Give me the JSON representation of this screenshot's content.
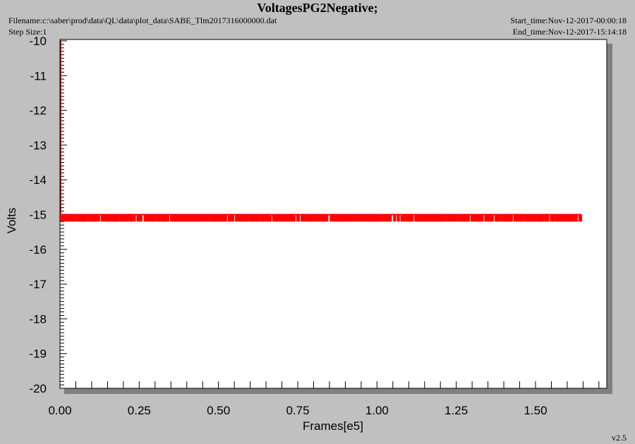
{
  "header": {
    "title": "VoltagesPG2Negative;",
    "filename": "Filename:c:\\saber\\prod\\data\\QL\\data\\plot_data\\SABE_Tlm2017316000000.dat",
    "step_size": "Step Size:1",
    "start_time": "Start_time:Nov-12-2017-00:00:18",
    "end_time": "End_time:Nov-12-2017-15:14:18"
  },
  "footer": {
    "version": "v2.5"
  },
  "colors": {
    "background": "#c0c0c0",
    "plot_area": "#ffffff",
    "shadow": "#808080",
    "series": "#ff0000",
    "start_marker": "#800000"
  },
  "chart_data": {
    "type": "line",
    "title": "VoltagesPG2Negative;",
    "xlabel": "Frames[e5]",
    "ylabel": "Volts",
    "xlim": [
      0,
      1.75
    ],
    "ylim": [
      -20,
      -10
    ],
    "xticks": [
      "0.00",
      "0.25",
      "0.50",
      "0.75",
      "1.00",
      "1.25",
      "1.50"
    ],
    "yticks": [
      "-10",
      "-11",
      "-12",
      "-13",
      "-14",
      "-15",
      "-16",
      "-17",
      "-18",
      "-19",
      "-20"
    ],
    "grid": false,
    "legend": "none",
    "series": [
      {
        "x": [
          0.0,
          1.645
        ],
        "y_values": [
          -15.0,
          -15.1
        ],
        "noise_range": [
          -15.0,
          -15.2
        ]
      }
    ]
  }
}
